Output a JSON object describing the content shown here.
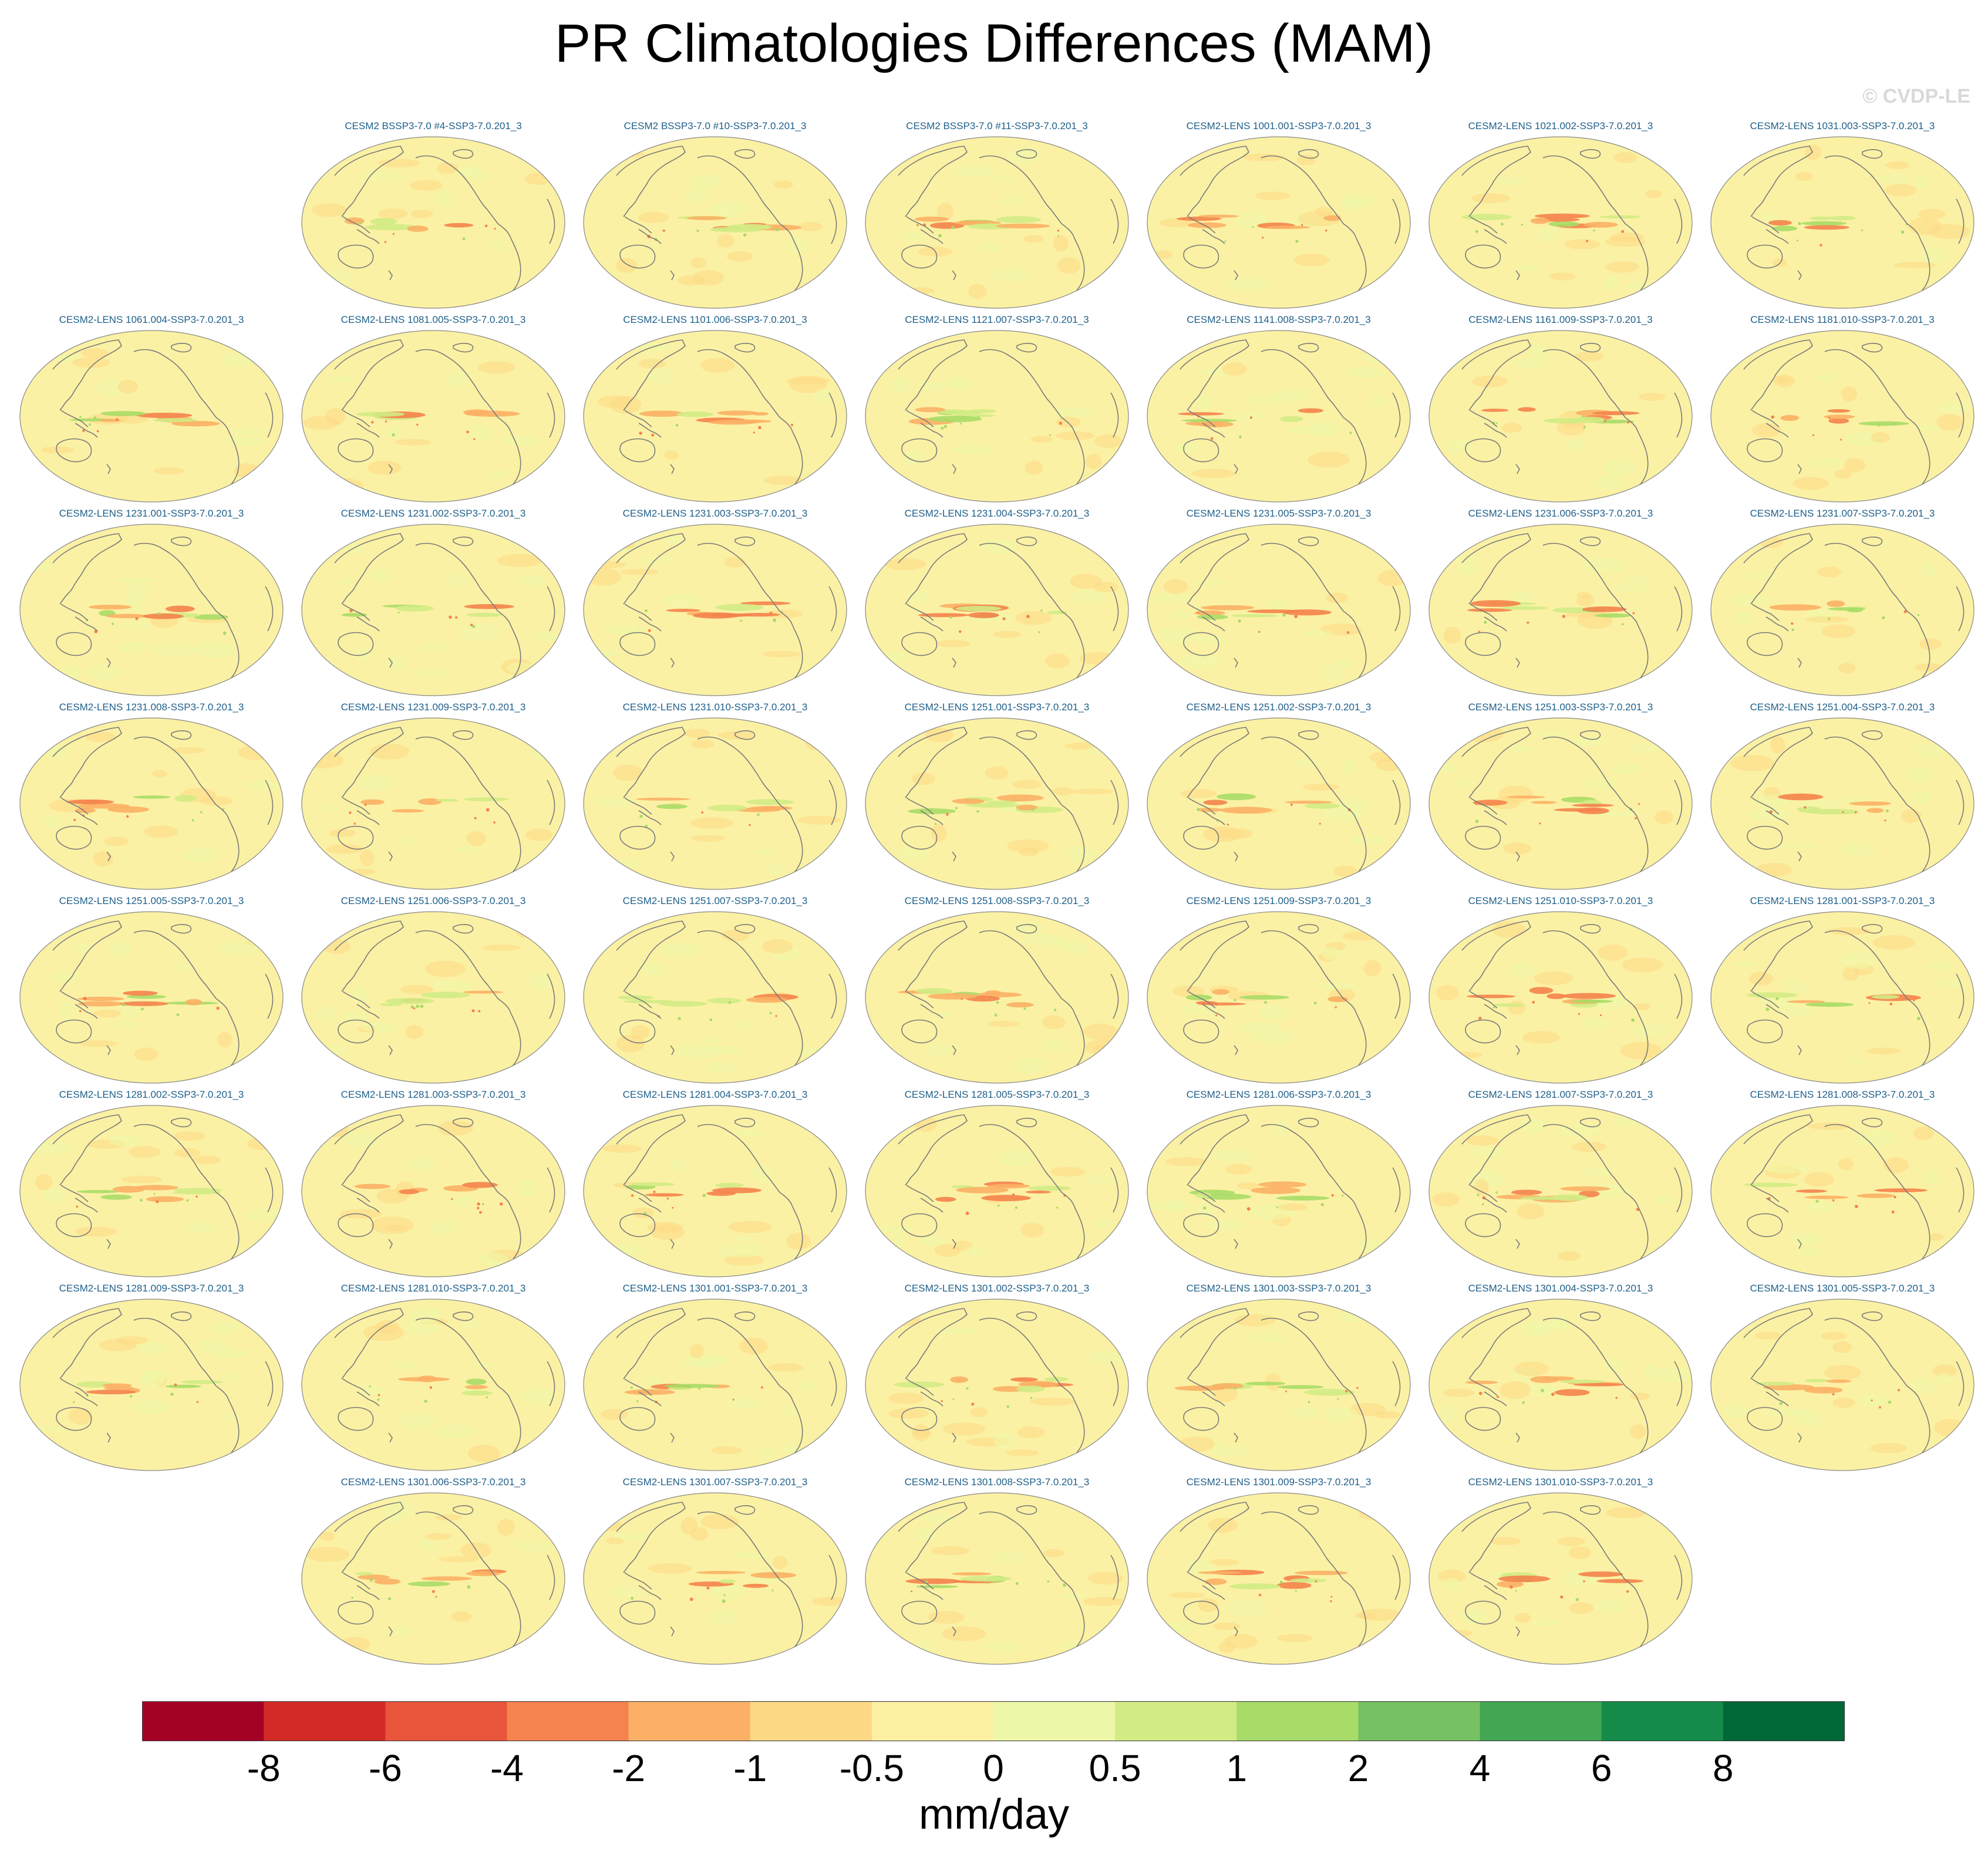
{
  "title": "PR Climatologies Differences (MAM)",
  "watermark": "© CVDP-LE",
  "chart_data": {
    "type": "heatmap",
    "projection": "global map panels",
    "panels": [
      {
        "row": 0,
        "col": 1,
        "title": "CESM2 BSSP3-7.0 #4-SSP3-7.0.201_3"
      },
      {
        "row": 0,
        "col": 2,
        "title": "CESM2 BSSP3-7.0 #10-SSP3-7.0.201_3"
      },
      {
        "row": 0,
        "col": 3,
        "title": "CESM2 BSSP3-7.0 #11-SSP3-7.0.201_3"
      },
      {
        "row": 0,
        "col": 4,
        "title": "CESM2-LENS 1001.001-SSP3-7.0.201_3"
      },
      {
        "row": 0,
        "col": 5,
        "title": "CESM2-LENS 1021.002-SSP3-7.0.201_3"
      },
      {
        "row": 0,
        "col": 6,
        "title": "CESM2-LENS 1031.003-SSP3-7.0.201_3"
      },
      {
        "row": 1,
        "col": 0,
        "title": "CESM2-LENS 1061.004-SSP3-7.0.201_3"
      },
      {
        "row": 1,
        "col": 1,
        "title": "CESM2-LENS 1081.005-SSP3-7.0.201_3"
      },
      {
        "row": 1,
        "col": 2,
        "title": "CESM2-LENS 1101.006-SSP3-7.0.201_3"
      },
      {
        "row": 1,
        "col": 3,
        "title": "CESM2-LENS 1121.007-SSP3-7.0.201_3"
      },
      {
        "row": 1,
        "col": 4,
        "title": "CESM2-LENS 1141.008-SSP3-7.0.201_3"
      },
      {
        "row": 1,
        "col": 5,
        "title": "CESM2-LENS 1161.009-SSP3-7.0.201_3"
      },
      {
        "row": 1,
        "col": 6,
        "title": "CESM2-LENS 1181.010-SSP3-7.0.201_3"
      },
      {
        "row": 2,
        "col": 0,
        "title": "CESM2-LENS 1231.001-SSP3-7.0.201_3"
      },
      {
        "row": 2,
        "col": 1,
        "title": "CESM2-LENS 1231.002-SSP3-7.0.201_3"
      },
      {
        "row": 2,
        "col": 2,
        "title": "CESM2-LENS 1231.003-SSP3-7.0.201_3"
      },
      {
        "row": 2,
        "col": 3,
        "title": "CESM2-LENS 1231.004-SSP3-7.0.201_3"
      },
      {
        "row": 2,
        "col": 4,
        "title": "CESM2-LENS 1231.005-SSP3-7.0.201_3"
      },
      {
        "row": 2,
        "col": 5,
        "title": "CESM2-LENS 1231.006-SSP3-7.0.201_3"
      },
      {
        "row": 2,
        "col": 6,
        "title": "CESM2-LENS 1231.007-SSP3-7.0.201_3"
      },
      {
        "row": 3,
        "col": 0,
        "title": "CESM2-LENS 1231.008-SSP3-7.0.201_3"
      },
      {
        "row": 3,
        "col": 1,
        "title": "CESM2-LENS 1231.009-SSP3-7.0.201_3"
      },
      {
        "row": 3,
        "col": 2,
        "title": "CESM2-LENS 1231.010-SSP3-7.0.201_3"
      },
      {
        "row": 3,
        "col": 3,
        "title": "CESM2-LENS 1251.001-SSP3-7.0.201_3"
      },
      {
        "row": 3,
        "col": 4,
        "title": "CESM2-LENS 1251.002-SSP3-7.0.201_3"
      },
      {
        "row": 3,
        "col": 5,
        "title": "CESM2-LENS 1251.003-SSP3-7.0.201_3"
      },
      {
        "row": 3,
        "col": 6,
        "title": "CESM2-LENS 1251.004-SSP3-7.0.201_3"
      },
      {
        "row": 4,
        "col": 0,
        "title": "CESM2-LENS 1251.005-SSP3-7.0.201_3"
      },
      {
        "row": 4,
        "col": 1,
        "title": "CESM2-LENS 1251.006-SSP3-7.0.201_3"
      },
      {
        "row": 4,
        "col": 2,
        "title": "CESM2-LENS 1251.007-SSP3-7.0.201_3"
      },
      {
        "row": 4,
        "col": 3,
        "title": "CESM2-LENS 1251.008-SSP3-7.0.201_3"
      },
      {
        "row": 4,
        "col": 4,
        "title": "CESM2-LENS 1251.009-SSP3-7.0.201_3"
      },
      {
        "row": 4,
        "col": 5,
        "title": "CESM2-LENS 1251.010-SSP3-7.0.201_3"
      },
      {
        "row": 4,
        "col": 6,
        "title": "CESM2-LENS 1281.001-SSP3-7.0.201_3"
      },
      {
        "row": 5,
        "col": 0,
        "title": "CESM2-LENS 1281.002-SSP3-7.0.201_3"
      },
      {
        "row": 5,
        "col": 1,
        "title": "CESM2-LENS 1281.003-SSP3-7.0.201_3"
      },
      {
        "row": 5,
        "col": 2,
        "title": "CESM2-LENS 1281.004-SSP3-7.0.201_3"
      },
      {
        "row": 5,
        "col": 3,
        "title": "CESM2-LENS 1281.005-SSP3-7.0.201_3"
      },
      {
        "row": 5,
        "col": 4,
        "title": "CESM2-LENS 1281.006-SSP3-7.0.201_3"
      },
      {
        "row": 5,
        "col": 5,
        "title": "CESM2-LENS 1281.007-SSP3-7.0.201_3"
      },
      {
        "row": 5,
        "col": 6,
        "title": "CESM2-LENS 1281.008-SSP3-7.0.201_3"
      },
      {
        "row": 6,
        "col": 0,
        "title": "CESM2-LENS 1281.009-SSP3-7.0.201_3"
      },
      {
        "row": 6,
        "col": 1,
        "title": "CESM2-LENS 1281.010-SSP3-7.0.201_3"
      },
      {
        "row": 6,
        "col": 2,
        "title": "CESM2-LENS 1301.001-SSP3-7.0.201_3"
      },
      {
        "row": 6,
        "col": 3,
        "title": "CESM2-LENS 1301.002-SSP3-7.0.201_3"
      },
      {
        "row": 6,
        "col": 4,
        "title": "CESM2-LENS 1301.003-SSP3-7.0.201_3"
      },
      {
        "row": 6,
        "col": 5,
        "title": "CESM2-LENS 1301.004-SSP3-7.0.201_3"
      },
      {
        "row": 6,
        "col": 6,
        "title": "CESM2-LENS 1301.005-SSP3-7.0.201_3"
      },
      {
        "row": 7,
        "col": 1,
        "title": "CESM2-LENS 1301.006-SSP3-7.0.201_3"
      },
      {
        "row": 7,
        "col": 2,
        "title": "CESM2-LENS 1301.007-SSP3-7.0.201_3"
      },
      {
        "row": 7,
        "col": 3,
        "title": "CESM2-LENS 1301.008-SSP3-7.0.201_3"
      },
      {
        "row": 7,
        "col": 4,
        "title": "CESM2-LENS 1301.009-SSP3-7.0.201_3"
      },
      {
        "row": 7,
        "col": 5,
        "title": "CESM2-LENS 1301.010-SSP3-7.0.201_3"
      }
    ],
    "colorbar": {
      "units": "mm/day",
      "tick_labels": [
        "-8",
        "-6",
        "-4",
        "-2",
        "-1",
        "-0.5",
        "0",
        "0.5",
        "1",
        "2",
        "4",
        "6",
        "8"
      ],
      "colors": [
        "#a50026",
        "#d32a27",
        "#e8553a",
        "#f4834d",
        "#fbb065",
        "#fdd885",
        "#fef0a2",
        "#eef7a8",
        "#d2eb85",
        "#a8db67",
        "#76c163",
        "#43a653",
        "#148b48",
        "#006837"
      ]
    },
    "background_color": "#fbf1a4",
    "coast_color": "#7a7a7a"
  }
}
